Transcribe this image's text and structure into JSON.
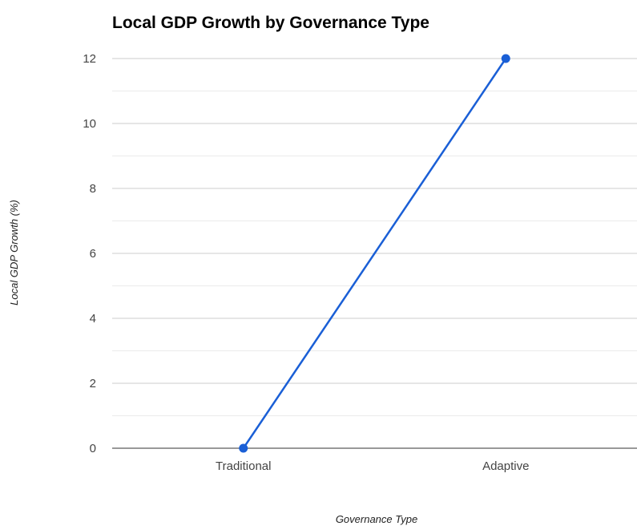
{
  "chart_data": {
    "type": "line",
    "title": "Local GDP Growth by Governance Type",
    "xlabel": "Governance Type",
    "ylabel": "Local GDP Growth (%)",
    "categories": [
      "Traditional",
      "Adaptive"
    ],
    "series": [
      {
        "values": [
          0,
          12
        ]
      }
    ],
    "ylim": [
      0,
      12
    ],
    "yticks": [
      0,
      2,
      4,
      6,
      8,
      10,
      12
    ],
    "grid": true,
    "legend": "none",
    "colors": {
      "line": "#1a5fd6"
    }
  }
}
